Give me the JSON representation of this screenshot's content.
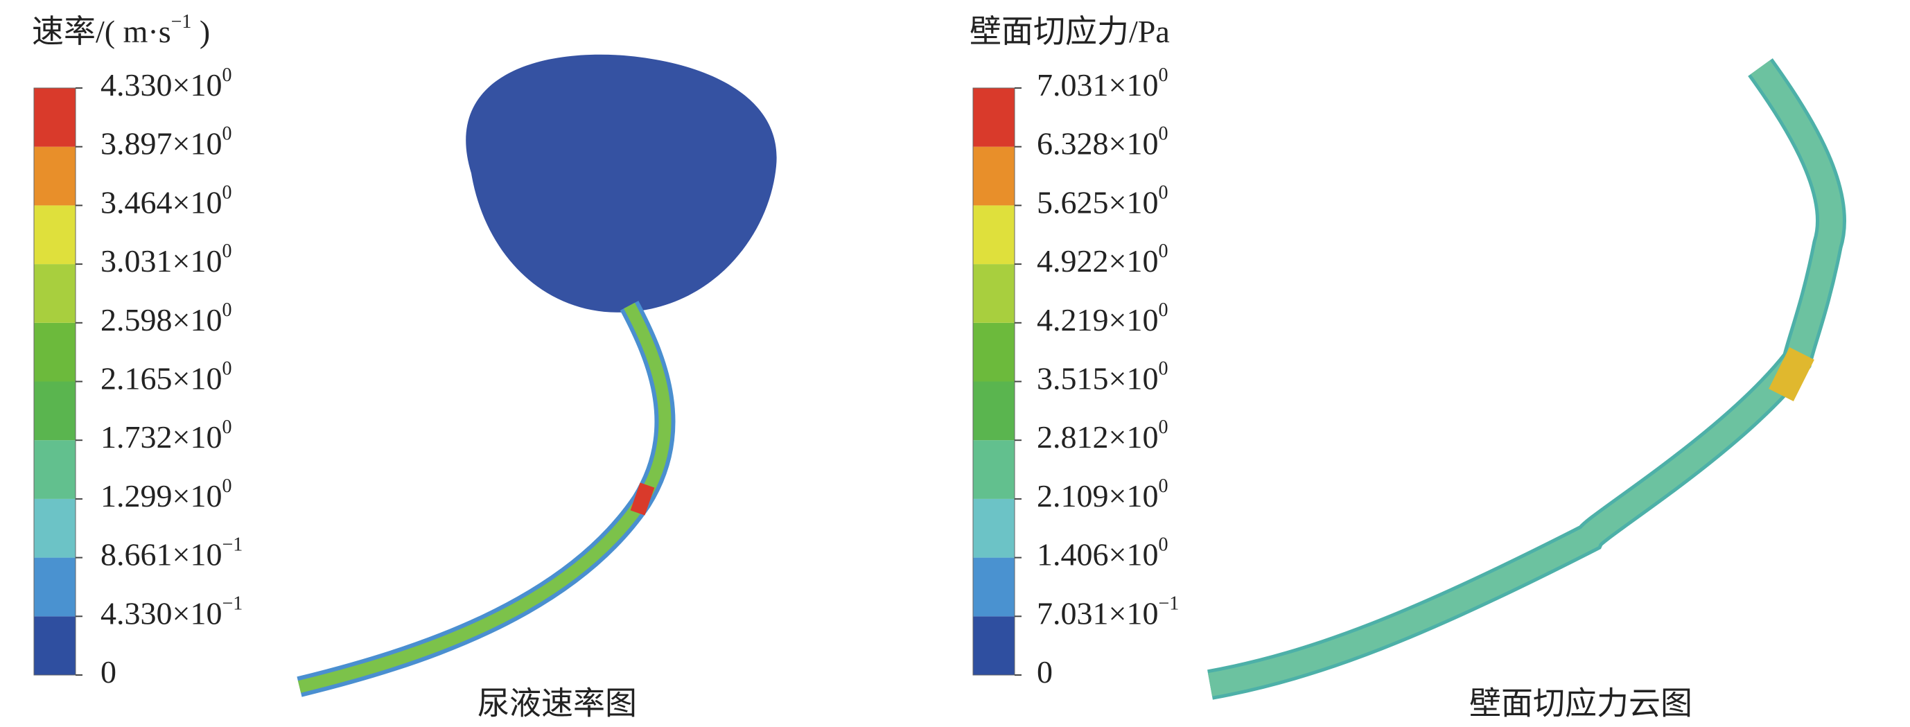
{
  "panels": [
    {
      "title": {
        "base": "速率/( m·s",
        "exp": "−1",
        "tail": " )"
      },
      "caption": "尿液速率图",
      "colors": [
        "#2f4fa0",
        "#4a92d0",
        "#6cc3c6",
        "#62c08e",
        "#5ab54f",
        "#6cba3c",
        "#a8cf3e",
        "#dfe03c",
        "#e88f2a",
        "#d93a2b"
      ],
      "ticks": [
        {
          "base": "0"
        },
        {
          "base": "4.330×10",
          "exp": "−1"
        },
        {
          "base": "8.661×10",
          "exp": "−1"
        },
        {
          "base": "1.299×10",
          "exp": "0"
        },
        {
          "base": "1.732×10",
          "exp": "0"
        },
        {
          "base": "2.165×10",
          "exp": "0"
        },
        {
          "base": "2.598×10",
          "exp": "0"
        },
        {
          "base": "3.031×10",
          "exp": "0"
        },
        {
          "base": "3.464×10",
          "exp": "0"
        },
        {
          "base": "3.897×10",
          "exp": "0"
        },
        {
          "base": "4.330×10",
          "exp": "0"
        }
      ]
    },
    {
      "title": {
        "base": "壁面切应力/Pa"
      },
      "caption": "壁面切应力云图",
      "colors": [
        "#2f4fa0",
        "#4a92d0",
        "#6cc3c6",
        "#62c08e",
        "#5ab54f",
        "#6cba3c",
        "#a8cf3e",
        "#dfe03c",
        "#e88f2a",
        "#d93a2b"
      ],
      "ticks": [
        {
          "base": "0"
        },
        {
          "base": "7.031×10",
          "exp": "−1"
        },
        {
          "base": "1.406×10",
          "exp": "0"
        },
        {
          "base": "2.109×10",
          "exp": "0"
        },
        {
          "base": "2.812×10",
          "exp": "0"
        },
        {
          "base": "3.515×10",
          "exp": "0"
        },
        {
          "base": "4.219×10",
          "exp": "0"
        },
        {
          "base": "4.922×10",
          "exp": "0"
        },
        {
          "base": "5.625×10",
          "exp": "0"
        },
        {
          "base": "6.328×10",
          "exp": "0"
        },
        {
          "base": "7.031×10",
          "exp": "0"
        }
      ]
    }
  ]
}
